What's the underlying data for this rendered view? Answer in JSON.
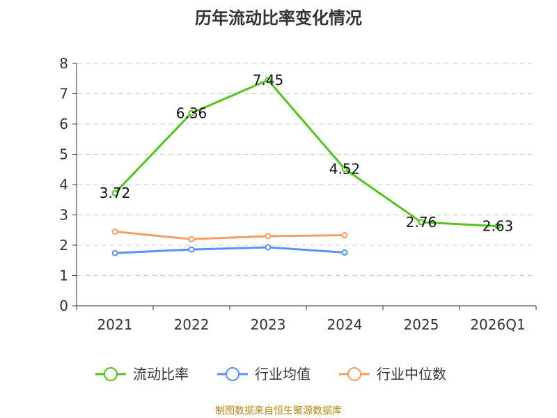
{
  "title": "历年流动比率变化情况",
  "source": "制图数据来自恒生聚源数据库",
  "chart_data": {
    "type": "line",
    "title": "历年流动比率变化情况",
    "categories": [
      "2021",
      "2022",
      "2023",
      "2024",
      "2025",
      "2026Q1"
    ],
    "ylim": [
      0,
      8
    ],
    "yticks": [
      0,
      1,
      2,
      3,
      4,
      5,
      6,
      7,
      8
    ],
    "grid": true,
    "legend_position": "bottom",
    "series": [
      {
        "name": "流动比率",
        "color": "#52c41a",
        "values": [
          3.72,
          6.36,
          7.45,
          4.52,
          2.76,
          2.63
        ],
        "labels": true
      },
      {
        "name": "行业均值",
        "color": "#5b8ff9",
        "values": [
          1.74,
          1.86,
          1.93,
          1.76,
          null,
          null
        ],
        "labels": false
      },
      {
        "name": "行业中位数",
        "color": "#f79c62",
        "values": [
          2.45,
          2.2,
          2.3,
          2.33,
          null,
          null
        ],
        "labels": false
      }
    ]
  }
}
